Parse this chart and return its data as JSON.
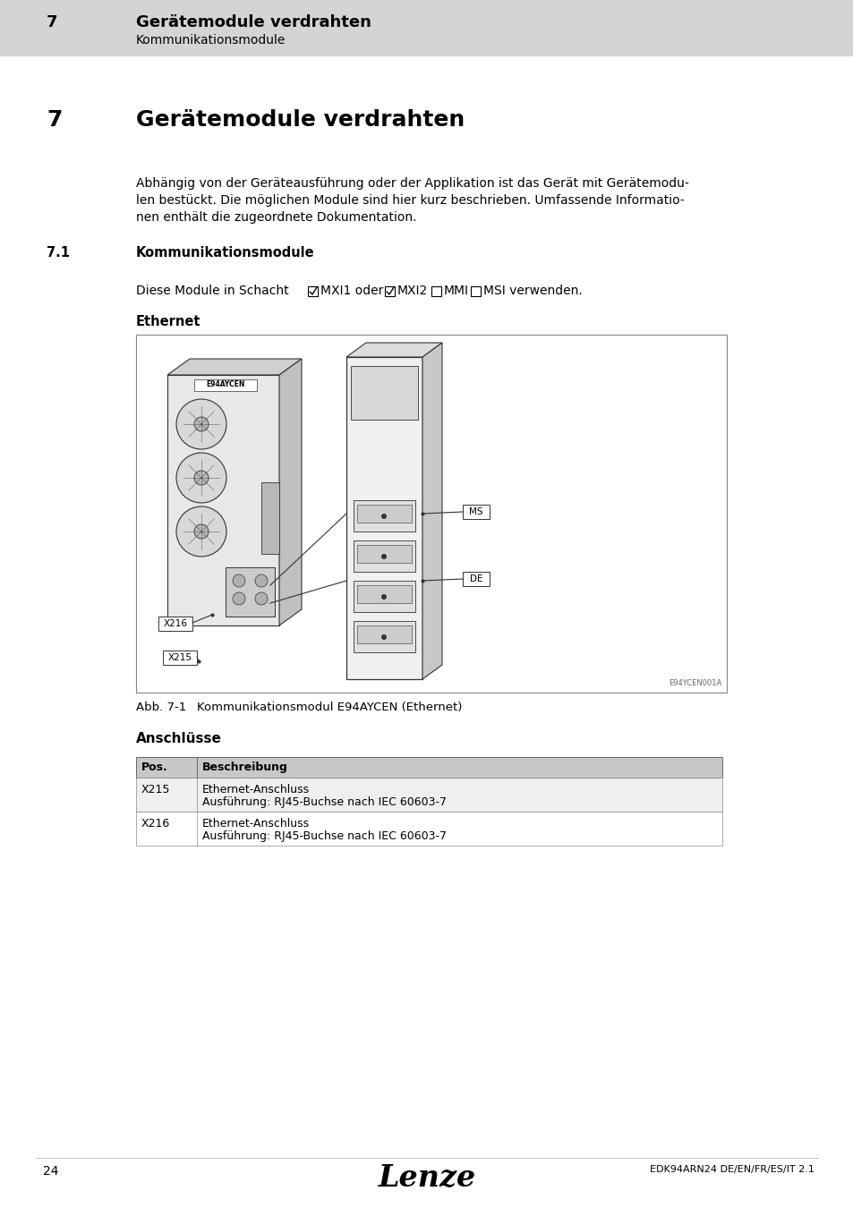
{
  "header_bg": "#d4d4d4",
  "header_number": "7",
  "header_title": "Gerätemodule verdrahten",
  "header_subtitle": "Kommunikationsmodule",
  "page_bg": "#ffffff",
  "section_number": "7",
  "section_title": "Gerätemodule verdrahten",
  "body_text_lines": [
    "Abhängig von der Geräteausführung oder der Applikation ist das Gerät mit Gerätemodu-",
    "len bestückt. Die möglichen Module sind hier kurz beschrieben. Umfassende Informatio-",
    "nen enthält die zugeordnete Dokumentation."
  ],
  "subsection_number": "7.1",
  "subsection_title": "Kommunikationsmodule",
  "schacht_text": "Diese Module in Schacht  ",
  "ethernet_label": "Ethernet",
  "image_bg": "#ffffff",
  "label_e94aycen": "E94AYCEN",
  "label_ms": "MS",
  "label_de": "DE",
  "label_x216": "X216",
  "label_x215": "X215",
  "label_watermark": "E94YCEN001A",
  "caption_prefix": "Abb. 7-1",
  "caption_text": "Kommunikationsmodul E94AYCEN (Ethernet)",
  "anschluesse_title": "Anschlüsse",
  "table_header_col1": "Pos.",
  "table_header_col2": "Beschreibung",
  "table_rows": [
    {
      "pos": "X215",
      "desc_line1": "Ethernet-Anschluss",
      "desc_line2": "Ausführung: RJ45-Buchse nach IEC 60603-7"
    },
    {
      "pos": "X216",
      "desc_line1": "Ethernet-Anschluss",
      "desc_line2": "Ausführung: RJ45-Buchse nach IEC 60603-7"
    }
  ],
  "footer_page": "24",
  "footer_brand": "Lenze",
  "footer_doc": "EDK94ARN24 DE/EN/FR/ES/IT 2.1",
  "left_tab_color": "#b8b8b8",
  "table_header_bg": "#c8c8c8",
  "table_row1_bg": "#efefef",
  "table_row2_bg": "#ffffff",
  "draw_color": "#333333",
  "light_gray": "#d0d0d0",
  "mid_gray": "#a0a0a0"
}
